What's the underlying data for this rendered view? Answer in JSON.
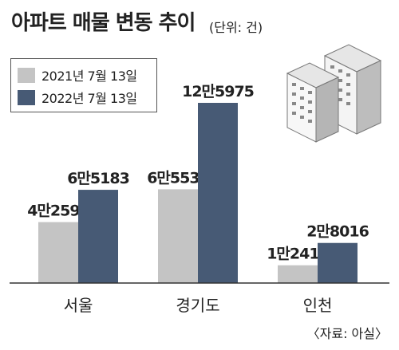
{
  "title": "아파트 매물 변동 추이",
  "unit": "(단위: 건)",
  "source": "〈자료: 아실〉",
  "colors": {
    "series_2021": "#c4c4c4",
    "series_2022": "#475a75",
    "axis": "#333333"
  },
  "chart_data": {
    "type": "bar",
    "categories": [
      "서울",
      "경기도",
      "인천"
    ],
    "series": [
      {
        "name": "2021년 7월 13일",
        "values": [
          42594,
          65538,
          12414
        ],
        "labels": [
          "4만2594",
          "6만5538",
          "1만2414"
        ]
      },
      {
        "name": "2022년 7월 13일",
        "values": [
          65183,
          125975,
          28016
        ],
        "labels": [
          "6만5183",
          "12만5975",
          "2만8016"
        ]
      }
    ],
    "title": "아파트 매물 변동 추이",
    "legend": "top-left",
    "grid": false
  }
}
